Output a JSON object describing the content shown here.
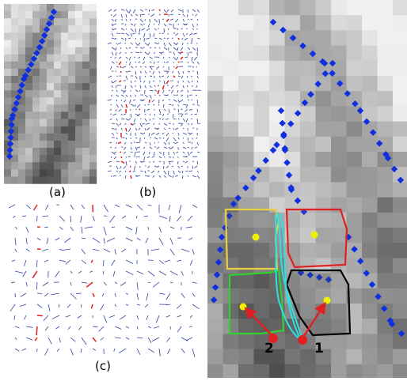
{
  "panels": [
    {
      "label": "(a)"
    },
    {
      "label": "(b)"
    },
    {
      "label": "(c)"
    }
  ],
  "markers": [
    {
      "label": "2"
    },
    {
      "label": "1"
    }
  ]
}
